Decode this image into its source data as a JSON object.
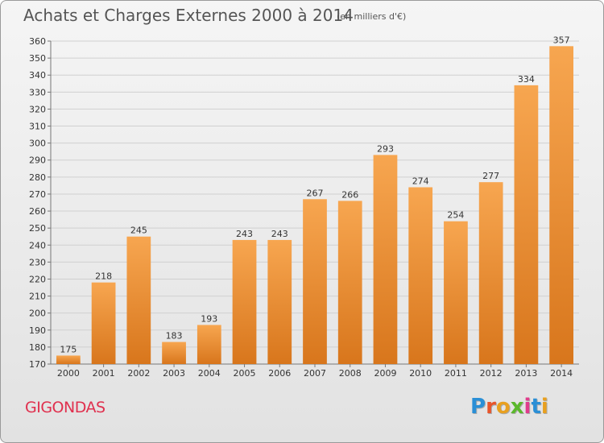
{
  "header": {
    "title": "Achats et Charges Externes 2000 à 2014",
    "subtitle": "(en milliers d'€)"
  },
  "footer": {
    "commune": "GIGONDAS",
    "logo": [
      "P",
      "r",
      "o",
      "x",
      "i",
      "t",
      "i"
    ],
    "logo_colors": [
      "#2a8fd6",
      "#e8552a",
      "#e8a020",
      "#5bb82c",
      "#e03c8c",
      "#2a8fd6",
      "#e8a020"
    ]
  },
  "chart_data": {
    "type": "bar",
    "title": "Achats et Charges Externes 2000 à 2014",
    "subtitle": "(en milliers d'€)",
    "xlabel": "",
    "ylabel": "",
    "categories": [
      "2000",
      "2001",
      "2002",
      "2003",
      "2004",
      "2005",
      "2006",
      "2007",
      "2008",
      "2009",
      "2010",
      "2011",
      "2012",
      "2013",
      "2014"
    ],
    "values": [
      175,
      218,
      245,
      183,
      193,
      243,
      243,
      267,
      266,
      293,
      274,
      254,
      277,
      334,
      357
    ],
    "ylim": [
      170,
      360
    ],
    "yticks": [
      170,
      180,
      190,
      200,
      210,
      220,
      230,
      240,
      250,
      260,
      270,
      280,
      290,
      300,
      310,
      320,
      330,
      340,
      350,
      360
    ],
    "grid": true,
    "bar_color_top": "#f7a650",
    "bar_color_bottom": "#d8761c"
  }
}
